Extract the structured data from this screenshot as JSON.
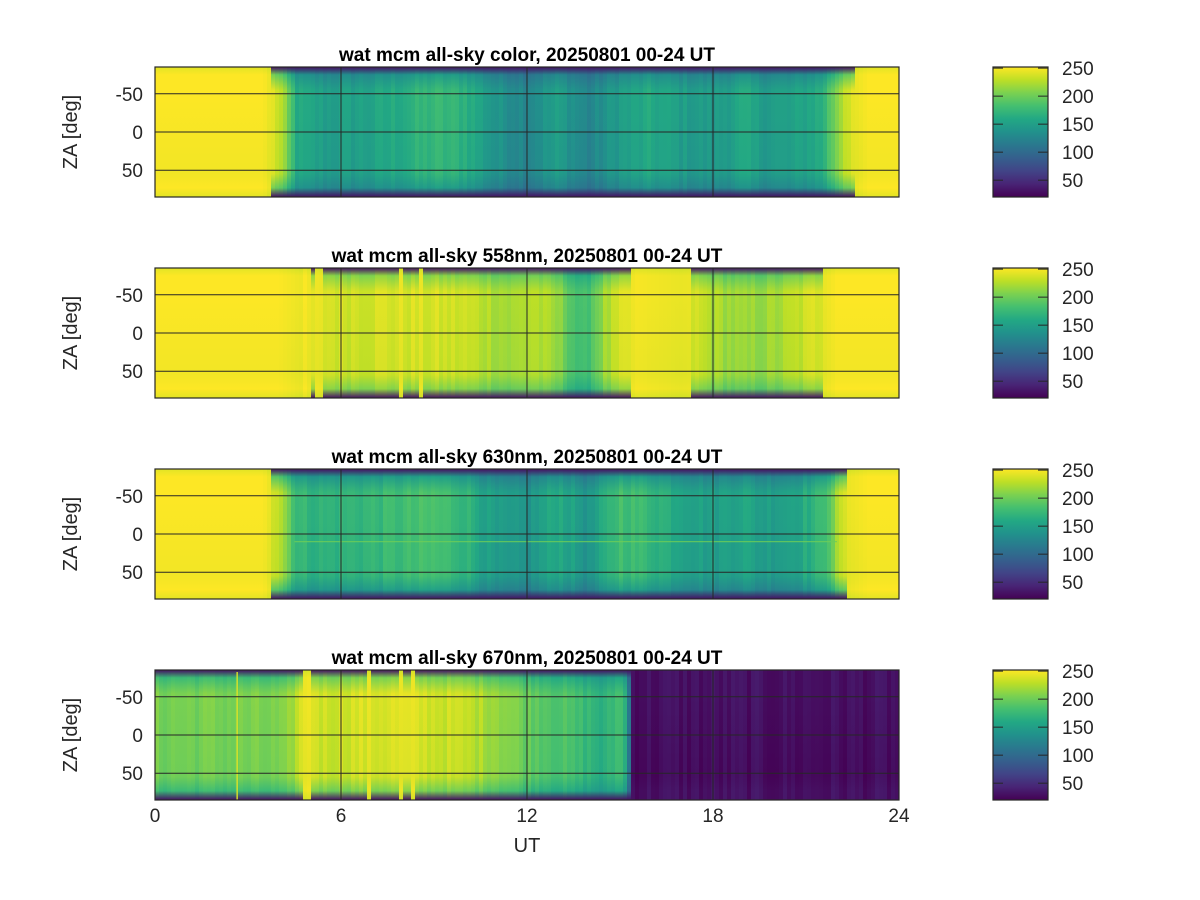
{
  "chart_data": [
    {
      "type": "heatmap",
      "title": "wat mcm all-sky color, 20250801 00-24 UT",
      "xlabel": "",
      "ylabel": "ZA [deg]",
      "xlim": [
        0,
        24
      ],
      "ylim": [
        -85,
        85
      ],
      "xticks": [
        0,
        6,
        12,
        18,
        24
      ],
      "xtick_labels": [],
      "yticks": [
        -50,
        0,
        50
      ],
      "ytick_labels": [
        "-50",
        "0",
        "50"
      ],
      "clim": [
        20,
        252
      ],
      "colorbar_ticks": [
        50,
        100,
        150,
        200,
        250
      ],
      "colorbar_tick_labels": [
        "50",
        "100",
        "150",
        "200",
        "250"
      ],
      "grid": true,
      "profile": {
        "ut": [
          0,
          3.5,
          4.0,
          4.6,
          5.5,
          7,
          8,
          9,
          10,
          11,
          12,
          13,
          14,
          15,
          16,
          17,
          18,
          19,
          19.5,
          20.5,
          21.5,
          22.3,
          23,
          24
        ],
        "value": [
          252,
          252,
          235,
          160,
          150,
          155,
          165,
          175,
          170,
          140,
          130,
          150,
          125,
          150,
          160,
          150,
          145,
          160,
          150,
          150,
          165,
          240,
          252,
          252
        ]
      },
      "edge_darkening": 0.35,
      "line_artifact": null
    },
    {
      "type": "heatmap",
      "title": "wat mcm all-sky 558nm, 20250801 00-24 UT",
      "xlabel": "",
      "ylabel": "ZA [deg]",
      "xlim": [
        0,
        24
      ],
      "ylim": [
        -85,
        85
      ],
      "xticks": [
        0,
        6,
        12,
        18,
        24
      ],
      "xtick_labels": [],
      "yticks": [
        -50,
        0,
        50
      ],
      "ytick_labels": [
        "-50",
        "0",
        "50"
      ],
      "clim": [
        20,
        252
      ],
      "colorbar_ticks": [
        50,
        100,
        150,
        200,
        250
      ],
      "colorbar_tick_labels": [
        "50",
        "100",
        "150",
        "200",
        "250"
      ],
      "grid": true,
      "profile": {
        "ut": [
          0,
          4.0,
          4.8,
          6,
          8,
          10,
          11.5,
          12.2,
          13,
          13.8,
          14.5,
          15.5,
          17,
          18,
          19,
          20,
          21,
          22,
          23,
          24
        ],
        "value": [
          252,
          252,
          245,
          238,
          240,
          235,
          220,
          230,
          215,
          175,
          220,
          250,
          245,
          225,
          215,
          220,
          235,
          252,
          252,
          252
        ]
      },
      "edge_darkening": 0.25,
      "line_artifact": null
    },
    {
      "type": "heatmap",
      "title": "wat mcm all-sky 630nm, 20250801 00-24 UT",
      "xlabel": "",
      "ylabel": "ZA [deg]",
      "xlim": [
        0,
        24
      ],
      "ylim": [
        -85,
        85
      ],
      "xticks": [
        0,
        6,
        12,
        18,
        24
      ],
      "xtick_labels": [],
      "yticks": [
        -50,
        0,
        50
      ],
      "ytick_labels": [
        "-50",
        "0",
        "50"
      ],
      "clim": [
        20,
        252
      ],
      "colorbar_ticks": [
        50,
        100,
        150,
        200,
        250
      ],
      "colorbar_tick_labels": [
        "50",
        "100",
        "150",
        "200",
        "250"
      ],
      "grid": true,
      "profile": {
        "ut": [
          0,
          3.5,
          4.0,
          4.6,
          5.5,
          7,
          8,
          9,
          10,
          11,
          12,
          13,
          14,
          15,
          16,
          17,
          18,
          19,
          19.5,
          20.5,
          21.5,
          22.3,
          23,
          24
        ],
        "value": [
          252,
          252,
          235,
          175,
          170,
          175,
          180,
          185,
          175,
          145,
          140,
          165,
          140,
          185,
          175,
          160,
          150,
          160,
          150,
          155,
          175,
          245,
          252,
          252
        ]
      },
      "edge_darkening": 0.4,
      "line_artifact": {
        "orientation": "horizontal",
        "za": 10,
        "value": 200
      }
    },
    {
      "type": "heatmap",
      "title": "wat mcm all-sky 670nm, 20250801 00-24 UT",
      "xlabel": "UT",
      "ylabel": "ZA [deg]",
      "xlim": [
        0,
        24
      ],
      "ylim": [
        -85,
        85
      ],
      "xticks": [
        0,
        6,
        12,
        18,
        24
      ],
      "xtick_labels": [
        "0",
        "6",
        "12",
        "18",
        "24"
      ],
      "yticks": [
        -50,
        0,
        50
      ],
      "ytick_labels": [
        "-50",
        "0",
        "50"
      ],
      "clim": [
        20,
        252
      ],
      "colorbar_ticks": [
        50,
        100,
        150,
        200,
        250
      ],
      "colorbar_tick_labels": [
        "50",
        "100",
        "150",
        "200",
        "250"
      ],
      "grid": true,
      "profile": {
        "ut": [
          0,
          4.2,
          4.5,
          4.9,
          5.4,
          6,
          8,
          10,
          11,
          12,
          13,
          14,
          14.5,
          15.1,
          15.3,
          15.4,
          24
        ],
        "value": [
          205,
          205,
          225,
          250,
          235,
          238,
          242,
          232,
          220,
          200,
          190,
          175,
          165,
          190,
          110,
          30,
          30
        ]
      },
      "edge_darkening": 0.3,
      "line_artifact": {
        "orientation": "vertical",
        "ut": 2.65,
        "value": 240
      }
    }
  ],
  "colormap": "viridis"
}
